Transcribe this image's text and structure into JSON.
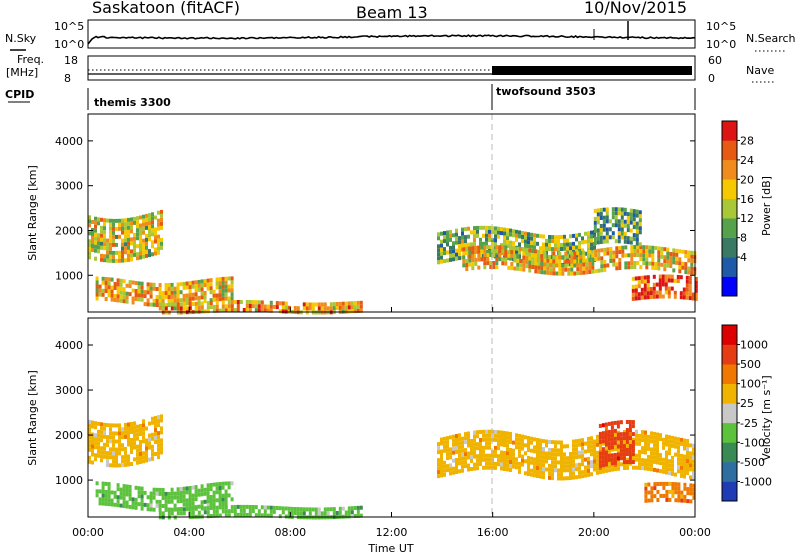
{
  "header": {
    "site": "Saskatoon (fitACF)",
    "beam": "Beam 13",
    "date": "10/Nov/2015"
  },
  "aux": {
    "nsky_label": "N.Sky",
    "nsky_ticks": [
      "10^5",
      "10^0"
    ],
    "nsearch_label": "N.Search",
    "nsearch_ticks": [
      "10^5",
      "10^0"
    ],
    "freq_label": "Freq.",
    "freq_unit": "[MHz]",
    "freq_ticks": [
      "18",
      "8"
    ],
    "nave_label": "Nave",
    "nave_ticks": [
      "60",
      "0"
    ],
    "cpid_label": "CPID",
    "cpid_modes": [
      {
        "name": "themis 3300",
        "start_hour": 0
      },
      {
        "name": "twofsound 3503",
        "start_hour": 16
      }
    ]
  },
  "chart_data": [
    {
      "type": "heatmap",
      "name": "power",
      "ylabel": "Slant Range [km]",
      "xlabel": "",
      "xlim": [
        0,
        24
      ],
      "ylim": [
        180,
        4600
      ],
      "yticks": [
        1000,
        2000,
        3000,
        4000
      ],
      "colorbar": {
        "label": "Power [dB]",
        "ticks": [
          "28",
          "24",
          "20",
          "16",
          "12",
          "8",
          "4"
        ],
        "range": [
          0,
          32
        ],
        "colors": [
          "#0000ff",
          "#1e5aa8",
          "#3a7a64",
          "#55a24a",
          "#a8c837",
          "#f5c800",
          "#f08c1e",
          "#e65a14",
          "#dc1414"
        ]
      },
      "echo_bands": [
        {
          "t0": 0.0,
          "t1": 2.9,
          "r0": 1450,
          "r1": 2400,
          "level": 18
        },
        {
          "t0": 0.3,
          "t1": 5.7,
          "r0": 400,
          "r1": 900,
          "level": 20
        },
        {
          "t0": 2.8,
          "t1": 10.8,
          "r0": 230,
          "r1": 420,
          "level": 22
        },
        {
          "t0": 13.8,
          "t1": 20.0,
          "r0": 1300,
          "r1": 2000,
          "level": 14
        },
        {
          "t0": 14.8,
          "t1": 24.0,
          "r0": 1100,
          "r1": 1600,
          "level": 20
        },
        {
          "t0": 21.5,
          "t1": 24.0,
          "r0": 500,
          "r1": 950,
          "level": 28
        },
        {
          "t0": 20.0,
          "t1": 21.8,
          "r0": 1600,
          "r1": 2400,
          "level": 12
        }
      ]
    },
    {
      "type": "heatmap",
      "name": "velocity",
      "ylabel": "Slant Range [km]",
      "xlabel": "Time UT",
      "xlim": [
        0,
        24
      ],
      "ylim": [
        180,
        4600
      ],
      "yticks": [
        1000,
        2000,
        3000,
        4000
      ],
      "xticks": [
        "00:00",
        "04:00",
        "08:00",
        "12:00",
        "16:00",
        "20:00",
        "00:00"
      ],
      "colorbar": {
        "label": "Velocity [m s⁻¹]",
        "ticks": [
          "1000",
          "500",
          "100",
          "25",
          "-25",
          "-100",
          "-500",
          "-1000"
        ],
        "colors": [
          "#1e3cb4",
          "#2e6ea0",
          "#3a8a55",
          "#5cc23c",
          "#c8c8c8",
          "#f0b400",
          "#f07800",
          "#e63c14",
          "#dc0000"
        ]
      },
      "echo_bands": [
        {
          "t0": 0.0,
          "t1": 2.9,
          "r0": 1450,
          "r1": 2400,
          "level": "25"
        },
        {
          "t0": 0.3,
          "t1": 5.7,
          "r0": 400,
          "r1": 900,
          "level": "-100"
        },
        {
          "t0": 2.8,
          "t1": 10.8,
          "r0": 230,
          "r1": 420,
          "level": "-100"
        },
        {
          "t0": 13.8,
          "t1": 24.0,
          "r0": 1200,
          "r1": 2000,
          "level": "25"
        },
        {
          "t0": 20.2,
          "t1": 21.6,
          "r0": 1300,
          "r1": 2200,
          "level": "500"
        },
        {
          "t0": 22.0,
          "t1": 24.0,
          "r0": 500,
          "r1": 900,
          "level": "100"
        }
      ]
    }
  ]
}
